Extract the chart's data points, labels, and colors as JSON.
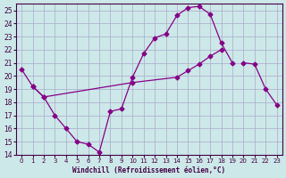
{
  "background_color": "#cce8e8",
  "grid_color": "#aaaacc",
  "line_color": "#880088",
  "xlabel": "Windchill (Refroidissement éolien,°C)",
  "xlim": [
    -0.5,
    23.5
  ],
  "ylim": [
    14,
    25.5
  ],
  "yticks": [
    14,
    15,
    16,
    17,
    18,
    19,
    20,
    21,
    22,
    23,
    24,
    25
  ],
  "xticks": [
    0,
    1,
    2,
    3,
    4,
    5,
    6,
    7,
    8,
    9,
    10,
    11,
    12,
    13,
    14,
    15,
    16,
    17,
    18,
    19,
    20,
    21,
    22,
    23
  ],
  "series": [
    {
      "x": [
        0,
        1,
        2,
        3,
        4,
        5,
        6,
        7,
        8,
        9,
        10,
        11,
        12,
        13,
        14,
        15,
        16,
        17,
        18,
        19,
        20,
        21,
        22,
        23
      ],
      "y": [
        20.5,
        19.2,
        18.4,
        17.0,
        16.0,
        15.0,
        14.8,
        14.2,
        17.3,
        17.5,
        19.9,
        21.7,
        22.9,
        23.2,
        24.6,
        25.2,
        25.3,
        24.7,
        22.5,
        21.0,
        null,
        null,
        null,
        null
      ]
    },
    {
      "x": [
        0,
        1,
        2,
        3,
        4,
        5,
        6,
        7,
        8,
        9,
        10,
        11,
        12,
        13,
        14,
        15,
        16,
        17,
        18,
        19,
        20,
        21,
        22,
        23
      ],
      "y": [
        null,
        19.2,
        18.4,
        null,
        null,
        null,
        null,
        null,
        null,
        null,
        19.5,
        null,
        null,
        null,
        19.9,
        20.4,
        20.9,
        21.5,
        22.0,
        null,
        null,
        null,
        null,
        null
      ]
    },
    {
      "x": [
        0,
        1,
        2,
        3,
        4,
        5,
        6,
        7,
        8,
        9,
        10,
        11,
        12,
        13,
        14,
        15,
        16,
        17,
        18,
        19,
        20,
        21,
        22,
        23
      ],
      "y": [
        null,
        null,
        null,
        null,
        null,
        null,
        null,
        null,
        null,
        null,
        null,
        null,
        null,
        null,
        null,
        null,
        null,
        null,
        null,
        null,
        21.0,
        20.9,
        19.0,
        17.8
      ]
    }
  ]
}
